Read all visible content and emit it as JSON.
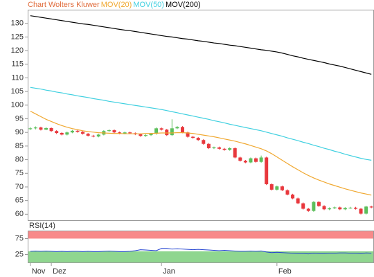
{
  "chart_data": [
    {
      "type": "candlestick",
      "title": "Chart Wolters Kluwer",
      "categories": [
        "Nov",
        null,
        null,
        null,
        "Dez",
        null,
        null,
        null,
        null,
        null,
        null,
        null,
        null,
        null,
        null,
        null,
        null,
        null,
        null,
        null,
        null,
        null,
        null,
        null,
        null,
        "Jan",
        null,
        null,
        null,
        null,
        null,
        null,
        null,
        null,
        null,
        null,
        null,
        null,
        null,
        null,
        null,
        null,
        null,
        null,
        null,
        null,
        null,
        "Feb",
        null,
        null,
        null,
        null,
        null,
        null,
        null,
        null,
        null,
        null,
        null,
        null,
        null,
        null,
        null,
        null,
        null,
        null
      ],
      "open": [
        91.2,
        91.5,
        91.8,
        91.0,
        91.6,
        90.5,
        89.8,
        89.2,
        90.0,
        90.6,
        90.2,
        89.5,
        88.8,
        88.5,
        89.2,
        90.5,
        90.8,
        90.0,
        89.6,
        90.0,
        89.7,
        89.3,
        88.7,
        89.0,
        89.5,
        91.5,
        91.0,
        89.0,
        91.5,
        92.0,
        90.0,
        88.4,
        88.0,
        87.2,
        85.8,
        84.2,
        84.5,
        84.0,
        83.6,
        84.2,
        80.8,
        79.6,
        79.0,
        80.5,
        79.2,
        80.8,
        71.0,
        69.0,
        70.2,
        68.8,
        67.2,
        65.8,
        64.0,
        62.0,
        61.2,
        64.5,
        63.0,
        61.8,
        62.2,
        62.5,
        61.8,
        62.3,
        62.4,
        62.0,
        60.2,
        62.8
      ],
      "high": [
        91.9,
        92.2,
        92.1,
        91.9,
        91.8,
        90.8,
        90.1,
        90.3,
        90.9,
        90.9,
        90.5,
        89.8,
        89.1,
        89.5,
        90.8,
        91.1,
        91.1,
        90.3,
        90.3,
        90.3,
        90.0,
        89.6,
        89.3,
        89.8,
        91.8,
        91.8,
        91.3,
        94.8,
        92.3,
        92.3,
        90.3,
        88.7,
        88.3,
        87.5,
        86.1,
        84.8,
        84.8,
        84.3,
        84.5,
        84.5,
        81.1,
        79.9,
        80.8,
        80.8,
        81.5,
        81.1,
        71.3,
        70.5,
        70.5,
        69.1,
        67.5,
        66.1,
        64.3,
        62.3,
        64.8,
        64.8,
        63.3,
        62.5,
        62.8,
        62.8,
        62.6,
        62.7,
        62.7,
        62.3,
        63.1,
        63.1
      ],
      "low": [
        90.9,
        91.1,
        90.7,
        90.8,
        90.2,
        89.4,
        88.9,
        88.9,
        89.7,
        89.9,
        89.2,
        88.5,
        88.2,
        88.2,
        88.9,
        90.2,
        89.7,
        89.3,
        89.3,
        89.4,
        89.0,
        88.4,
        88.4,
        88.7,
        89.2,
        90.7,
        88.7,
        88.7,
        91.2,
        89.7,
        88.1,
        87.7,
        86.9,
        85.5,
        83.9,
        83.9,
        83.7,
        83.3,
        83.3,
        80.5,
        79.3,
        78.7,
        78.7,
        78.9,
        78.9,
        70.7,
        68.7,
        68.7,
        68.5,
        66.9,
        65.5,
        63.7,
        61.7,
        60.9,
        60.9,
        62.7,
        61.5,
        61.5,
        61.9,
        61.5,
        61.5,
        62.0,
        61.7,
        59.9,
        59.9,
        62.2
      ],
      "close": [
        91.5,
        91.8,
        91.0,
        91.6,
        90.5,
        89.8,
        89.2,
        90.0,
        90.6,
        90.2,
        89.5,
        88.8,
        88.5,
        89.2,
        90.5,
        90.8,
        90.0,
        89.6,
        90.0,
        89.7,
        89.3,
        88.7,
        89.0,
        89.5,
        91.5,
        91.0,
        89.0,
        91.5,
        92.0,
        90.0,
        88.4,
        88.0,
        87.2,
        85.8,
        84.2,
        84.5,
        84.0,
        83.6,
        84.2,
        80.8,
        79.6,
        79.0,
        80.5,
        79.2,
        80.8,
        71.0,
        69.0,
        70.2,
        68.8,
        67.2,
        65.8,
        64.0,
        62.0,
        61.2,
        64.5,
        63.0,
        61.8,
        62.2,
        62.5,
        61.8,
        62.3,
        62.4,
        62.0,
        60.2,
        62.8,
        62.5
      ],
      "up_color": "#5cbf5c",
      "down_color": "#e8383d",
      "series": [
        {
          "name": "MOV(20)",
          "color": "#f0a830",
          "values": [
            97.8,
            96.8,
            95.8,
            94.8,
            94.0,
            93.2,
            92.5,
            91.9,
            91.4,
            91.0,
            90.6,
            90.3,
            90.1,
            89.9,
            89.8,
            89.7,
            89.6,
            89.6,
            89.5,
            89.5,
            89.5,
            89.5,
            89.6,
            89.6,
            89.7,
            89.8,
            89.8,
            89.8,
            89.9,
            89.9,
            89.8,
            89.6,
            89.3,
            89.0,
            88.7,
            88.4,
            88.0,
            87.6,
            87.2,
            86.8,
            86.3,
            85.8,
            85.2,
            84.6,
            84.0,
            83.2,
            82.2,
            81.0,
            79.8,
            78.6,
            77.4,
            76.3,
            75.2,
            74.2,
            73.3,
            72.5,
            71.8,
            71.1,
            70.5,
            69.9,
            69.3,
            68.8,
            68.3,
            67.8,
            67.4,
            67.0
          ]
        },
        {
          "name": "MOV(50)",
          "color": "#40d0e0",
          "values": [
            106.5,
            106.2,
            105.9,
            105.5,
            105.2,
            104.8,
            104.5,
            104.1,
            103.8,
            103.4,
            103.1,
            102.8,
            102.4,
            102.1,
            101.8,
            101.4,
            101.1,
            100.8,
            100.5,
            100.2,
            99.9,
            99.6,
            99.3,
            99.0,
            98.7,
            98.4,
            98.0,
            97.6,
            97.2,
            96.8,
            96.4,
            96.0,
            95.6,
            95.2,
            94.8,
            94.3,
            93.9,
            93.5,
            93.0,
            92.6,
            92.2,
            91.8,
            91.4,
            91.0,
            90.6,
            90.1,
            89.6,
            89.1,
            88.6,
            88.0,
            87.5,
            87.0,
            86.4,
            85.9,
            85.3,
            84.8,
            84.2,
            83.7,
            83.1,
            82.6,
            82.0,
            81.5,
            81.0,
            80.5,
            80.1,
            79.8
          ]
        },
        {
          "name": "MOV(200)",
          "color": "#000000",
          "values": [
            132.8,
            132.5,
            132.2,
            131.9,
            131.6,
            131.3,
            131.0,
            130.7,
            130.4,
            130.1,
            129.8,
            129.6,
            129.3,
            129.0,
            128.7,
            128.4,
            128.1,
            127.8,
            127.5,
            127.3,
            127.0,
            126.7,
            126.4,
            126.1,
            125.8,
            125.5,
            125.2,
            125.0,
            124.7,
            124.4,
            124.2,
            123.9,
            123.6,
            123.4,
            123.1,
            122.8,
            122.6,
            122.3,
            122.0,
            121.8,
            121.5,
            121.2,
            120.9,
            120.6,
            120.3,
            120.1,
            119.8,
            119.5,
            119.1,
            118.6,
            118.1,
            117.7,
            117.2,
            116.8,
            116.4,
            116.0,
            115.6,
            115.1,
            114.7,
            114.3,
            113.8,
            113.3,
            112.8,
            112.3,
            111.8,
            111.3
          ]
        }
      ],
      "ylim": [
        57.8,
        135
      ],
      "yticks": [
        60,
        65,
        70,
        75,
        80,
        85,
        90,
        95,
        100,
        105,
        110,
        115,
        120,
        125,
        130
      ]
    },
    {
      "type": "line",
      "title": "RSI(14)",
      "color": "#2040d0",
      "values": [
        35,
        36,
        35,
        36,
        35,
        34,
        35,
        34,
        35,
        35,
        34,
        35,
        34,
        34,
        35,
        36,
        35,
        34,
        34,
        35,
        37,
        40,
        39,
        38,
        37,
        44,
        44,
        42,
        43,
        42,
        41,
        40,
        41,
        40,
        39,
        38,
        37,
        38,
        37,
        36,
        35,
        35,
        36,
        35,
        36,
        33,
        31,
        32,
        31,
        30,
        29,
        28,
        28,
        27,
        29,
        28,
        28,
        29,
        29,
        30,
        30,
        29,
        29,
        28,
        30,
        29
      ],
      "bands": [
        {
          "from": 75,
          "to": 100,
          "color": "#f88a8a"
        },
        {
          "from": 0,
          "to": 35,
          "color": "#8fd68f"
        }
      ],
      "ylim": [
        0,
        100
      ],
      "yticks": [
        25,
        75
      ]
    }
  ]
}
